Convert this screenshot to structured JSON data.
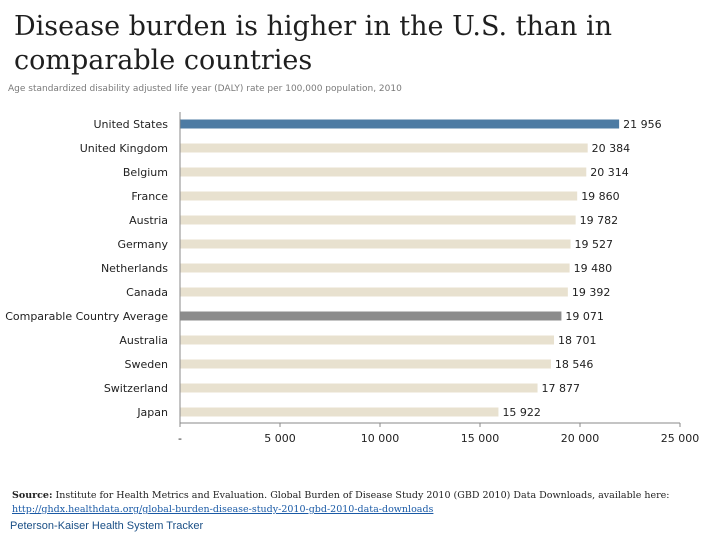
{
  "title": "Disease burden is higher in the U.S. than in comparable countries",
  "subtitle": "Age standardized disability adjusted life year (DALY) rate per 100,000 population, 2010",
  "source_label": "Source:",
  "source_text": "Institute for Health Metrics and Evaluation. Global Burden of Disease Study 2010 (GBD 2010) Data Downloads, available here:",
  "source_link": "http://ghdx.healthdata.org/global-burden-disease-study-2010-gbd-2010-data-downloads",
  "brand": "Peterson-Kaiser Health System Tracker",
  "chart_data": {
    "type": "bar",
    "orientation": "horizontal",
    "categories": [
      "United States",
      "United Kingdom",
      "Belgium",
      "France",
      "Austria",
      "Germany",
      "Netherlands",
      "Canada",
      "Comparable Country Average",
      "Australia",
      "Sweden",
      "Switzerland",
      "Japan"
    ],
    "values": [
      21956,
      20384,
      20314,
      19860,
      19782,
      19527,
      19480,
      19392,
      19071,
      18701,
      18546,
      17877,
      15922
    ],
    "value_labels": [
      "21 956",
      "20 384",
      "20 314",
      "19 860",
      "19 782",
      "19 527",
      "19 480",
      "19 392",
      "19 071",
      "18 701",
      "18 546",
      "17 877",
      "15 922"
    ],
    "xlim": [
      0,
      25000
    ],
    "x_ticks": [
      0,
      5000,
      10000,
      15000,
      20000,
      25000
    ],
    "x_tick_labels": [
      "-",
      "5 000",
      "10 000",
      "15 000",
      "20 000",
      "25 000"
    ],
    "colors": {
      "default": "#e8e1cf",
      "highlight": "#4d7ba3",
      "average": "#8c8c8c"
    },
    "highlight_categories": [
      "United States"
    ],
    "average_categories": [
      "Comparable Country Average"
    ],
    "grid": false,
    "legend": false
  }
}
